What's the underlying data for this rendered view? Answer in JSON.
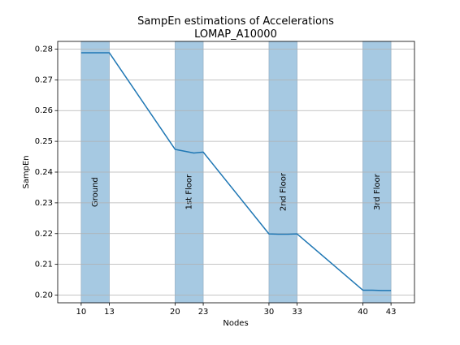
{
  "chart_data": {
    "type": "line",
    "title_line1": "SampEn estimations of Accelerations",
    "title_line2": "LOMAP_A10000",
    "xlabel": "Nodes",
    "ylabel": "SampEn",
    "xlim": [
      7.5,
      45.5
    ],
    "ylim": [
      0.1975,
      0.2825
    ],
    "xticks": [
      10,
      13,
      20,
      23,
      30,
      33,
      40,
      43
    ],
    "yticks": [
      0.2,
      0.21,
      0.22,
      0.23,
      0.24,
      0.25,
      0.26,
      0.27,
      0.28
    ],
    "ytick_labels": [
      "0.20",
      "0.21",
      "0.22",
      "0.23",
      "0.24",
      "0.25",
      "0.26",
      "0.27",
      "0.28"
    ],
    "grid": "horizontal",
    "line_color": "#1f77b4",
    "band_color": "#a6c9e2",
    "bands": [
      {
        "x0": 10,
        "x1": 13,
        "label": "Ground"
      },
      {
        "x0": 20,
        "x1": 23,
        "label": "1st Floor"
      },
      {
        "x0": 30,
        "x1": 33,
        "label": "2nd Floor"
      },
      {
        "x0": 40,
        "x1": 43,
        "label": "3rd Floor"
      }
    ],
    "series": [
      {
        "x": [
          10,
          11,
          12,
          13,
          20,
          21,
          22,
          23,
          30,
          31,
          32,
          33,
          40,
          41,
          42,
          43
        ],
        "values": [
          0.2788,
          0.2788,
          0.2788,
          0.2788,
          0.2474,
          0.2468,
          0.2462,
          0.2465,
          0.2199,
          0.2198,
          0.2198,
          0.2199,
          0.2016,
          0.2016,
          0.2015,
          0.2015
        ]
      }
    ]
  }
}
